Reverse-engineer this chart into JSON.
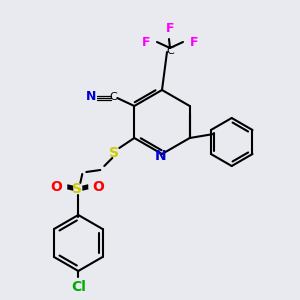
{
  "bg_color": "#e8eaf0",
  "bond_color": "#000000",
  "colors": {
    "N": "#0000cc",
    "O": "#ff0000",
    "S": "#cccc00",
    "F": "#ff00ff",
    "Cl": "#00aa00",
    "C": "#000000"
  },
  "lw": 1.5,
  "lw_double": 1.5
}
